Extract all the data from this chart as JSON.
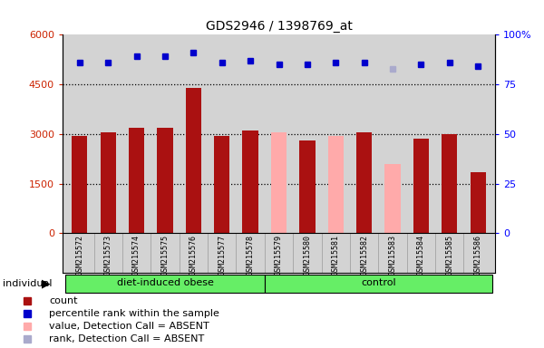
{
  "title": "GDS2946 / 1398769_at",
  "samples": [
    "GSM215572",
    "GSM215573",
    "GSM215574",
    "GSM215575",
    "GSM215576",
    "GSM215577",
    "GSM215578",
    "GSM215579",
    "GSM215580",
    "GSM215581",
    "GSM215582",
    "GSM215583",
    "GSM215584",
    "GSM215585",
    "GSM215586"
  ],
  "counts": [
    2950,
    3050,
    3200,
    3200,
    4400,
    2950,
    3100,
    3050,
    2800,
    2950,
    3050,
    2100,
    2850,
    3000,
    1850
  ],
  "ranks_pct": [
    86,
    86,
    89,
    89,
    91,
    86,
    87,
    85,
    85,
    86,
    86,
    83,
    85,
    86,
    84
  ],
  "absent": [
    false,
    false,
    false,
    false,
    false,
    false,
    false,
    true,
    false,
    true,
    false,
    true,
    false,
    false,
    false
  ],
  "absent_rank": [
    false,
    false,
    false,
    false,
    false,
    false,
    false,
    false,
    false,
    false,
    false,
    true,
    false,
    false,
    false
  ],
  "groups": [
    "diet-induced obese",
    "diet-induced obese",
    "diet-induced obese",
    "diet-induced obese",
    "diet-induced obese",
    "diet-induced obese",
    "diet-induced obese",
    "control",
    "control",
    "control",
    "control",
    "control",
    "control",
    "control",
    "control"
  ],
  "bar_color_present": "#aa1111",
  "bar_color_absent": "#ffaaaa",
  "rank_color_present": "#0000cc",
  "rank_color_absent": "#aaaacc",
  "ylim_left": [
    0,
    6000
  ],
  "ylim_right": [
    0,
    100
  ],
  "yticks_left": [
    0,
    1500,
    3000,
    4500,
    6000
  ],
  "ytick_labels_left": [
    "0",
    "1500",
    "3000",
    "4500",
    "6000"
  ],
  "yticks_right": [
    0,
    25,
    50,
    75,
    100
  ],
  "ytick_labels_right": [
    "0",
    "25",
    "50",
    "75",
    "100%"
  ],
  "dotted_lines_pct": [
    25,
    50,
    75
  ],
  "background_color": "#d3d3d3",
  "individual_label": "individual",
  "green_color": "#66ee66"
}
